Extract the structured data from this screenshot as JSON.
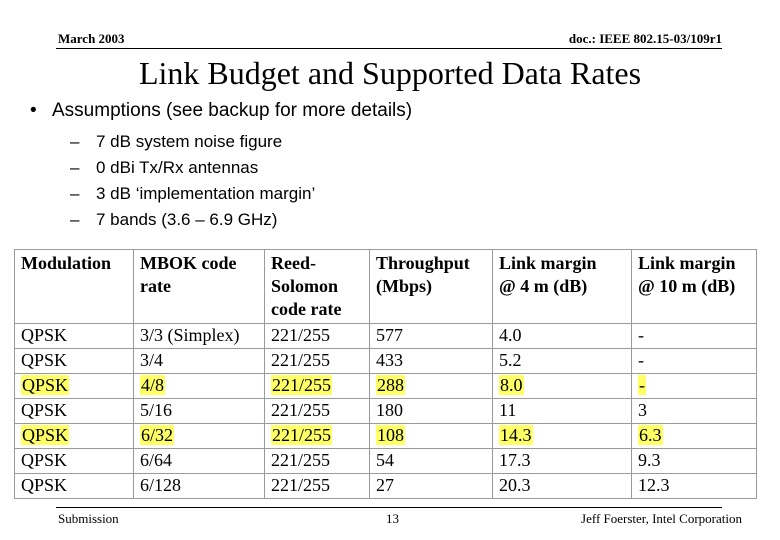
{
  "header": {
    "date": "March 2003",
    "doc_id": "doc.: IEEE 802.15-03/109r1"
  },
  "title": "Link Budget and Supported Data Rates",
  "assumptions": {
    "heading": "Assumptions (see backup for more details)",
    "items": [
      "7 dB system noise figure",
      "0 dBi Tx/Rx antennas",
      "3 dB ‘implementation margin’",
      "7 bands (3.6 – 6.9 GHz)"
    ]
  },
  "table": {
    "headers": [
      [
        "Modulation"
      ],
      [
        "MBOK code",
        "rate"
      ],
      [
        "Reed-",
        "Solomon",
        "code rate"
      ],
      [
        "Throughput",
        "(Mbps)"
      ],
      [
        "Link margin",
        "@ 4 m (dB)"
      ],
      [
        "Link margin",
        "@ 10 m (dB)"
      ]
    ],
    "rows": [
      {
        "cells": [
          "QPSK",
          "3/3 (Simplex)",
          "221/255",
          "577",
          "4.0",
          "-"
        ],
        "highlighted": false
      },
      {
        "cells": [
          "QPSK",
          "3/4",
          "221/255",
          "433",
          "5.2",
          "-"
        ],
        "highlighted": false
      },
      {
        "cells": [
          "QPSK",
          "4/8",
          "221/255",
          "288",
          "8.0",
          "-"
        ],
        "highlighted": true
      },
      {
        "cells": [
          "QPSK",
          "5/16",
          "221/255",
          "180",
          "11",
          "3"
        ],
        "highlighted": false
      },
      {
        "cells": [
          "QPSK",
          "6/32",
          "221/255",
          "108",
          "14.3",
          "6.3"
        ],
        "highlighted": true
      },
      {
        "cells": [
          "QPSK",
          "6/64",
          "221/255",
          "54",
          "17.3",
          "9.3"
        ],
        "highlighted": false
      },
      {
        "cells": [
          "QPSK",
          "6/128",
          "221/255",
          "27",
          "20.3",
          "12.3"
        ],
        "highlighted": false
      }
    ],
    "highlight_color": "#ffff66"
  },
  "footer": {
    "left": "Submission",
    "page": "13",
    "right": "Jeff Foerster, Intel Corporation"
  }
}
